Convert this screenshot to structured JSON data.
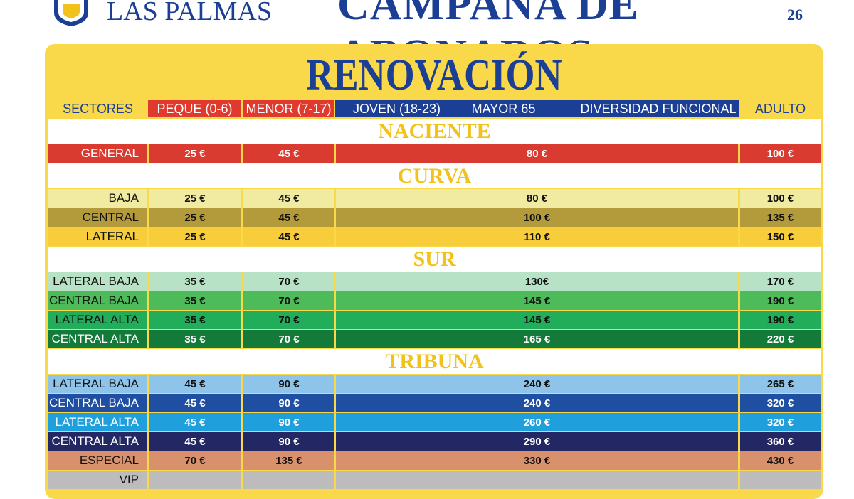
{
  "header": {
    "club": "LAS PALMAS",
    "campaign": "CAMPAÑA DE ABONADOS",
    "season": "26"
  },
  "title": "RENOVACIÓN",
  "columns": {
    "sectors": "SECTORES",
    "peque": "PEQUE (0-6)",
    "menor": "MENOR (7-17)",
    "joven": "JOVEN (18-23)",
    "mayor": "MAYOR 65",
    "diversidad": "DIVERSIDAD FUNCIONAL",
    "adulto": "ADULTO"
  },
  "sections": [
    {
      "name": "NACIENTE",
      "rows": [
        {
          "sector": "GENERAL",
          "color": "#d93b30",
          "text_color": "#ffffff",
          "prices": [
            "25 €",
            "45 €",
            "80 €",
            "100 €"
          ]
        }
      ]
    },
    {
      "name": "CURVA",
      "rows": [
        {
          "sector": "BAJA",
          "color": "#f0eba0",
          "text_color": "#111111",
          "prices": [
            "25 €",
            "45 €",
            "80 €",
            "100 €"
          ]
        },
        {
          "sector": "CENTRAL",
          "color": "#b39b3c",
          "text_color": "#111111",
          "prices": [
            "25 €",
            "45 €",
            "100 €",
            "135 €"
          ]
        },
        {
          "sector": "LATERAL",
          "color": "#f7cd3b",
          "text_color": "#111111",
          "prices": [
            "25 €",
            "45 €",
            "110 €",
            "150 €"
          ]
        }
      ]
    },
    {
      "name": "SUR",
      "rows": [
        {
          "sector": "LATERAL BAJA",
          "color": "#b8e2c6",
          "text_color": "#111111",
          "prices": [
            "35 €",
            "70 €",
            "130€",
            "170 €"
          ]
        },
        {
          "sector": "CENTRAL BAJA",
          "color": "#4dbb5a",
          "text_color": "#111111",
          "prices": [
            "35 €",
            "70 €",
            "145 €",
            "190 €"
          ]
        },
        {
          "sector": "LATERAL ALTA",
          "color": "#22ad5b",
          "text_color": "#111111",
          "prices": [
            "35 €",
            "70 €",
            "145 €",
            "190 €"
          ]
        },
        {
          "sector": "CENTRAL ALTA",
          "color": "#137a3a",
          "text_color": "#ffffff",
          "prices": [
            "35 €",
            "70 €",
            "165 €",
            "220 €"
          ]
        }
      ]
    },
    {
      "name": "TRIBUNA",
      "rows": [
        {
          "sector": "LATERAL BAJA",
          "color": "#8ec4ea",
          "text_color": "#111111",
          "prices": [
            "45 €",
            "90 €",
            "240 €",
            "265 €"
          ]
        },
        {
          "sector": "CENTRAL BAJA",
          "color": "#1e4fa2",
          "text_color": "#ffffff",
          "prices": [
            "45 €",
            "90 €",
            "240 €",
            "320 €"
          ]
        },
        {
          "sector": "LATERAL ALTA",
          "color": "#1fa0dc",
          "text_color": "#ffffff",
          "prices": [
            "45 €",
            "90 €",
            "260 €",
            "320 €"
          ]
        },
        {
          "sector": "CENTRAL ALTA",
          "color": "#232763",
          "text_color": "#ffffff",
          "prices": [
            "45 €",
            "90 €",
            "290 €",
            "360 €"
          ]
        },
        {
          "sector": "ESPECIAL",
          "color": "#d9916d",
          "text_color": "#111111",
          "prices": [
            "70 €",
            "135 €",
            "330 €",
            "430 €"
          ]
        },
        {
          "sector": "VIP",
          "color": "#bcbcbc",
          "text_color": "#111111"
        }
      ]
    }
  ]
}
